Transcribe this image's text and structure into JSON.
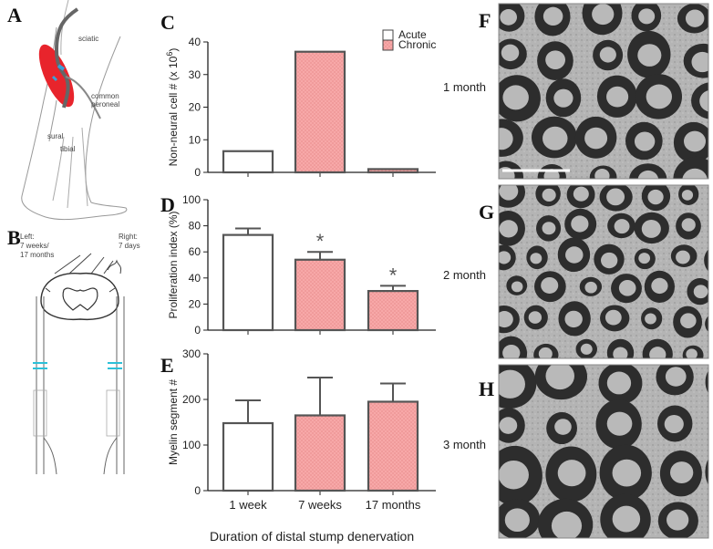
{
  "panels": {
    "A": "A",
    "B": "B",
    "C": "C",
    "D": "D",
    "E": "E",
    "F": "F",
    "G": "G",
    "H": "H"
  },
  "illustration_A": {
    "sciatic": "sciatic",
    "common_peroneal_1": "common",
    "common_peroneal_2": "peroneal",
    "sural": "sural",
    "tibial": "tibial"
  },
  "illustration_B": {
    "left_1": "Left:",
    "left_2": "7 weeks/",
    "left_3": "17 months",
    "right_1": "Right:",
    "right_2": "7 days"
  },
  "micrographs": [
    {
      "label": "1 month"
    },
    {
      "label": "2 month"
    },
    {
      "label": "3 month"
    }
  ],
  "legend": {
    "acute": "Acute",
    "chronic": "Chronic"
  },
  "colors": {
    "chronic_fill": "#f5a3a3",
    "acute_fill": "#ffffff",
    "bar_stroke": "#555555",
    "illus_red": "#e8242c",
    "illus_blue": "#3aa0d8"
  },
  "x_axis_title": "Duration of distal stump denervation",
  "chart_data": [
    {
      "panel": "C",
      "type": "bar",
      "categories": [
        "1 week",
        "7 weeks",
        "17 months"
      ],
      "series": [
        {
          "name": "Acute",
          "values": [
            6.5,
            null,
            null
          ]
        },
        {
          "name": "Chronic",
          "values": [
            null,
            37,
            1
          ]
        }
      ],
      "ylabel_main": "Non-neural cell # (x 10",
      "ylabel_sup": "6",
      "ylabel_end": ")",
      "ylim": [
        0,
        40
      ],
      "yticks": [
        "0",
        "10",
        "20",
        "30",
        "40"
      ],
      "legend_position": "top-right"
    },
    {
      "panel": "D",
      "type": "bar",
      "categories": [
        "1 week",
        "7 weeks",
        "17 months"
      ],
      "series": [
        {
          "name": "Acute",
          "values": [
            73,
            null,
            null
          ],
          "errors": [
            5,
            null,
            null
          ]
        },
        {
          "name": "Chronic",
          "values": [
            null,
            54,
            30
          ],
          "errors": [
            null,
            6,
            4
          ]
        }
      ],
      "significance": [
        "",
        "*",
        "*"
      ],
      "ylabel": "Proliferation index (%)",
      "ylim": [
        0,
        100
      ],
      "yticks": [
        "0",
        "20",
        "40",
        "60",
        "80",
        "100"
      ]
    },
    {
      "panel": "E",
      "type": "bar",
      "categories": [
        "1 week",
        "7 weeks",
        "17 months"
      ],
      "series": [
        {
          "name": "Acute",
          "values": [
            148,
            null,
            null
          ],
          "errors": [
            50,
            null,
            null
          ]
        },
        {
          "name": "Chronic",
          "values": [
            null,
            165,
            195
          ],
          "errors": [
            null,
            83,
            40
          ]
        }
      ],
      "ylabel": "Myelin segment #",
      "ylim": [
        0,
        300
      ],
      "yticks": [
        "0",
        "100",
        "200",
        "300"
      ],
      "xticks": [
        "1 week",
        "7 weeks",
        "17 months"
      ]
    }
  ]
}
